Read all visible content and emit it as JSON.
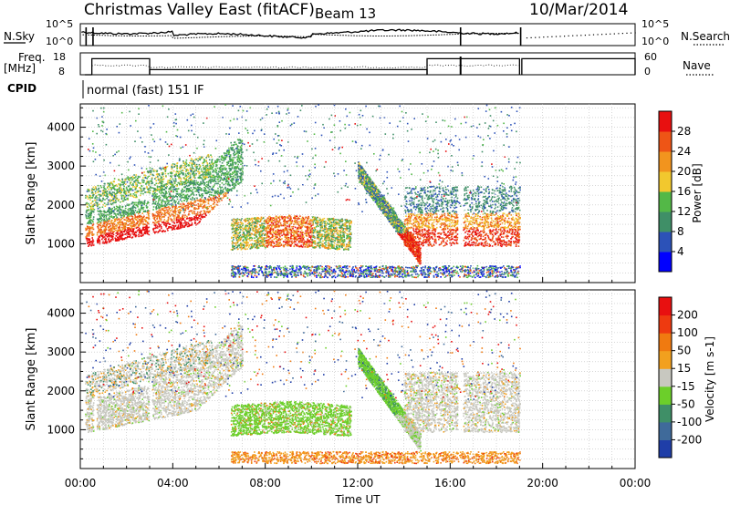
{
  "header": {
    "station": "Christmas Valley East (fitACF)",
    "beam": "Beam 13",
    "date": "10/Mar/2014"
  },
  "noise_panel": {
    "left_label": "N.Sky",
    "left_ticks": [
      "10^5",
      "10^0"
    ],
    "right_ticks": [
      "10^5",
      "10^0"
    ],
    "right_label": "N.Search"
  },
  "freq_panel": {
    "left_label_1": "Freq.",
    "left_label_2": "[MHz]",
    "left_ticks": [
      "18",
      "8"
    ],
    "right_ticks": [
      "60",
      "0"
    ],
    "right_label": "Nave",
    "freq_steps": [
      {
        "from": 0.2,
        "to": 0.5,
        "value": 8
      },
      {
        "from": 0.5,
        "to": 3.0,
        "value": 16.8
      },
      {
        "from": 3.0,
        "to": 15.0,
        "value": 10.8
      },
      {
        "from": 15.0,
        "to": 19.0,
        "value": 16.8
      },
      {
        "from": 19.1,
        "to": 24.0,
        "value": 16.8
      }
    ]
  },
  "cpid": {
    "label": "CPID",
    "program": "normal (fast) 151 IF"
  },
  "chart_data": [
    {
      "type": "heatmap",
      "name": "power",
      "ylabel": "Slant Range [km]",
      "xlabel": "",
      "ylim": [
        0,
        4600
      ],
      "xlim": [
        0,
        24
      ],
      "yticks": [
        "1000",
        "2000",
        "3000",
        "4000"
      ],
      "colorbar": {
        "label": "Power [dB]",
        "ticks": [
          "4",
          "8",
          "12",
          "16",
          "20",
          "24",
          "28"
        ],
        "colors": [
          "#0000ff",
          "#2c52b8",
          "#3f8f67",
          "#53b847",
          "#f2c82e",
          "#f2941e",
          "#ee5516",
          "#e81010"
        ]
      }
    },
    {
      "type": "heatmap",
      "name": "velocity",
      "ylabel": "Slant Range [km]",
      "xlabel": "Time UT",
      "ylim": [
        0,
        4600
      ],
      "xlim": [
        0,
        24
      ],
      "yticks": [
        "1000",
        "2000",
        "3000",
        "4000"
      ],
      "xticks": [
        "00:00",
        "04:00",
        "08:00",
        "12:00",
        "16:00",
        "20:00",
        "00:00"
      ],
      "colorbar": {
        "label": "Velocity [m s-1]",
        "ticks": [
          "200",
          "100",
          "50",
          "15",
          "-15",
          "-50",
          "-100",
          "-200"
        ],
        "colors": [
          "#1f3ea8",
          "#3f6a9a",
          "#3f8f67",
          "#6ccf2a",
          "#c8c8c0",
          "#f2a01e",
          "#f07a10",
          "#ee3a10",
          "#e81010"
        ]
      }
    }
  ]
}
